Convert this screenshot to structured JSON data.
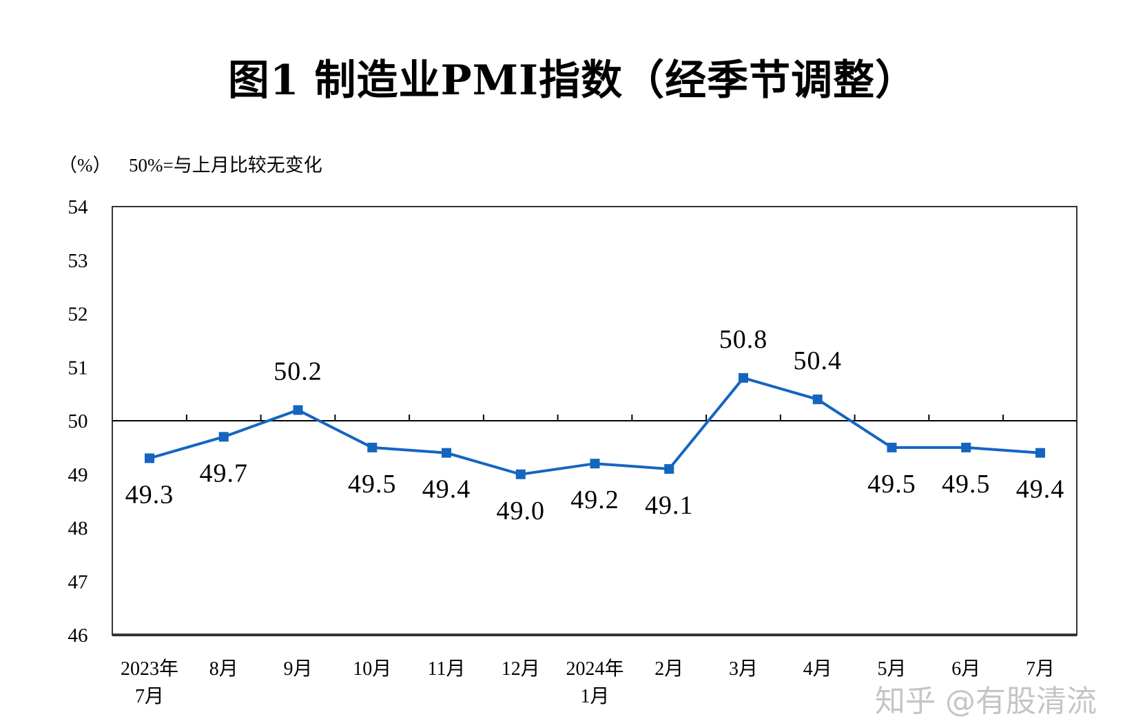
{
  "chart_data": {
    "type": "line",
    "title": "图1  制造业PMI指数（经季节调整）",
    "ylabel": "（%）",
    "annotation": "50%=与上月比较无变化",
    "categories": [
      "2023年\n7月",
      "8月",
      "9月",
      "10月",
      "11月",
      "12月",
      "2024年\n1月",
      "2月",
      "3月",
      "4月",
      "5月",
      "6月",
      "7月"
    ],
    "series": [
      {
        "values": [
          49.3,
          49.7,
          50.2,
          49.5,
          49.4,
          49.0,
          49.2,
          49.1,
          50.8,
          50.4,
          49.5,
          49.5,
          49.4
        ]
      }
    ],
    "data_labels": [
      "49.3",
      "49.7",
      "50.2",
      "49.5",
      "49.4",
      "49.0",
      "49.2",
      "49.1",
      "50.8",
      "50.4",
      "49.5",
      "49.5",
      "49.4"
    ],
    "label_position": [
      "below",
      "below",
      "above",
      "below",
      "below",
      "below",
      "below",
      "below",
      "above",
      "above",
      "below",
      "below",
      "below"
    ],
    "ylim": [
      46,
      54
    ],
    "yticks": [
      46,
      47,
      48,
      49,
      50,
      51,
      52,
      53,
      54
    ],
    "reference_line": 50,
    "grid": false,
    "line_color": "#1565C0"
  },
  "watermark": "知乎 @有股清流"
}
